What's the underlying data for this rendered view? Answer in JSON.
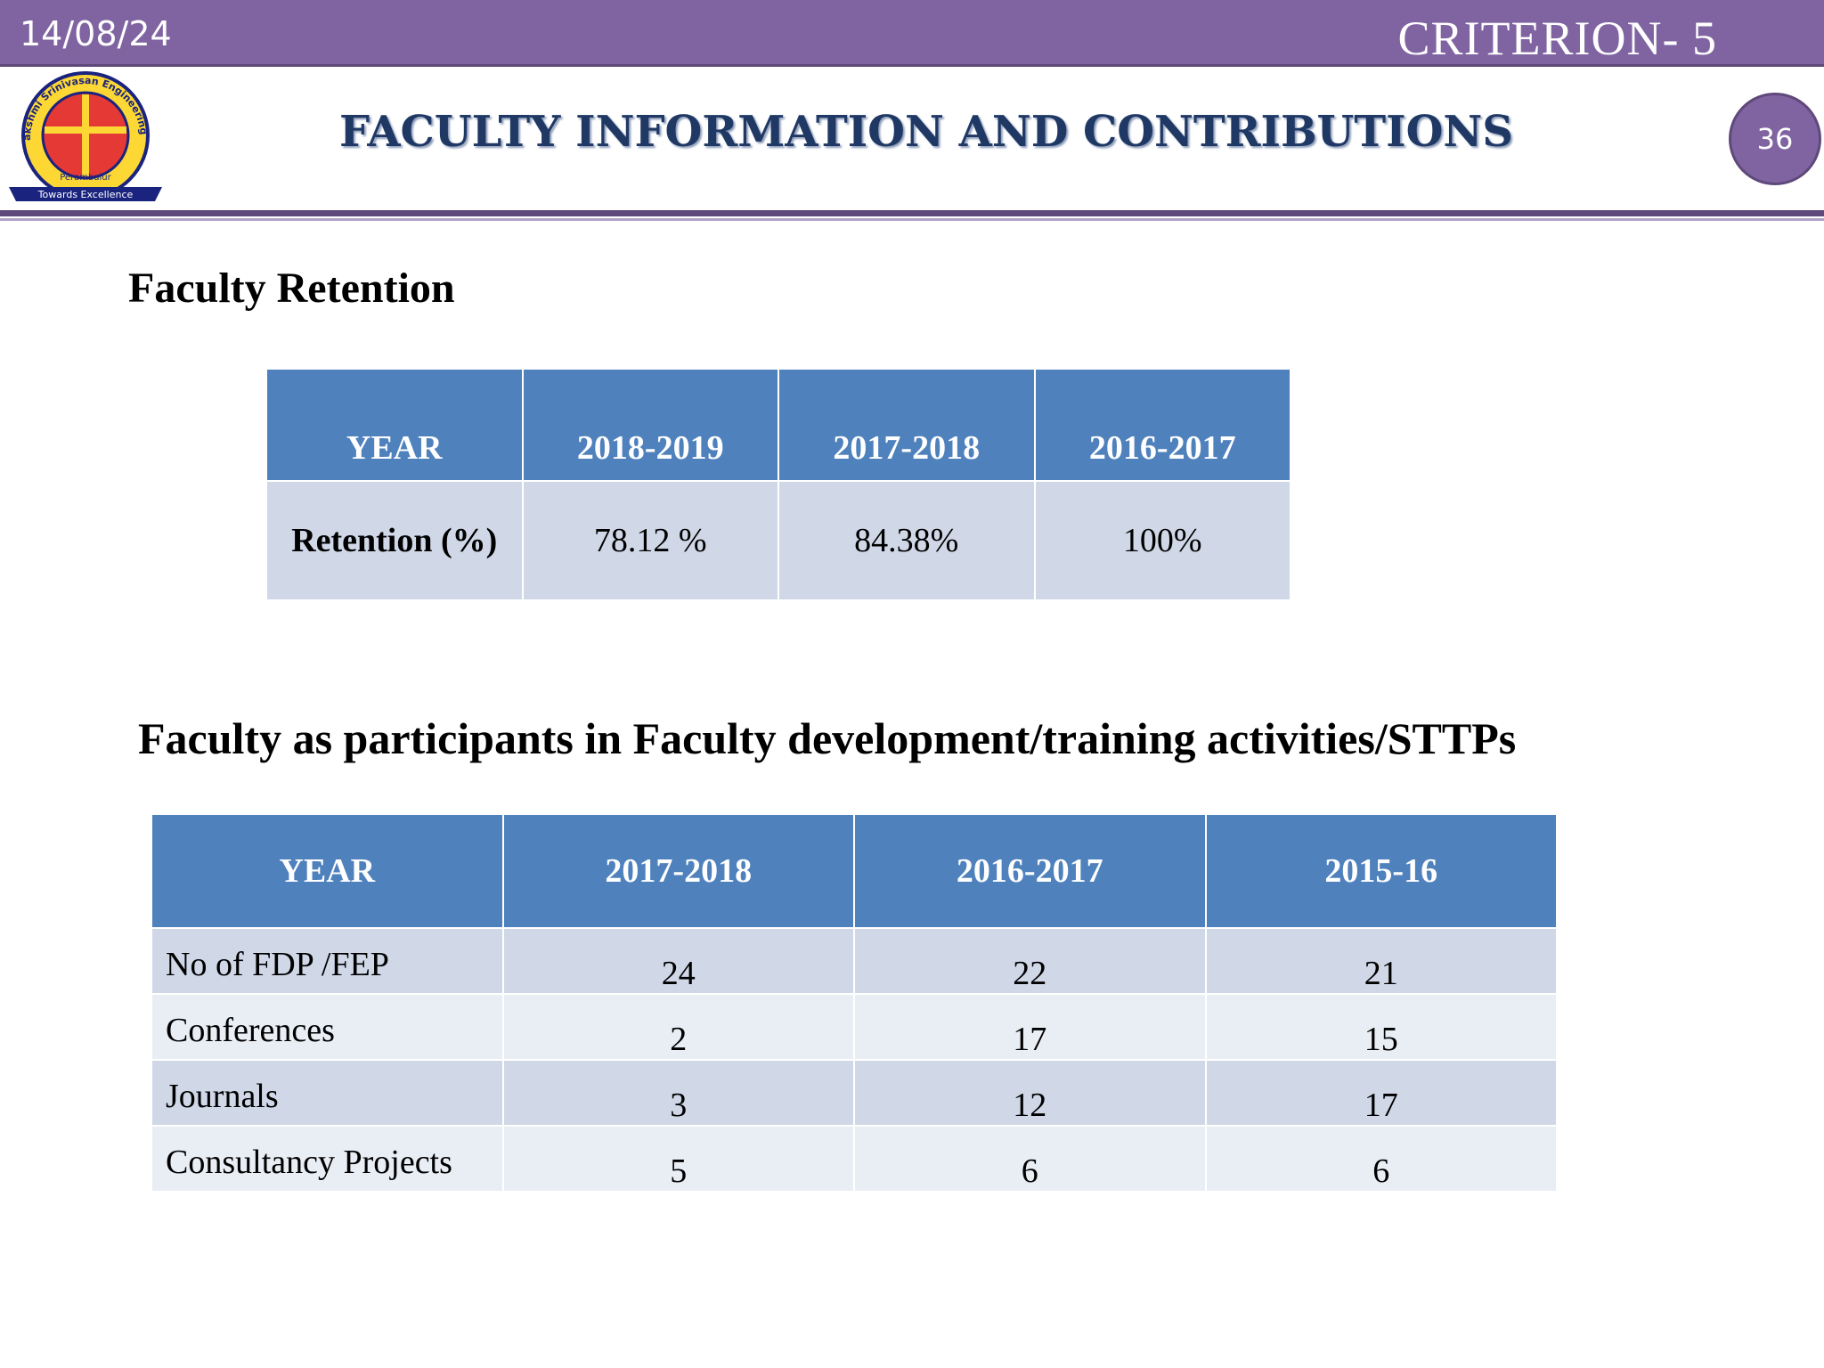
{
  "header": {
    "date": "14/08/24",
    "criterion": "CRITERION- 5",
    "title": "FACULTY INFORMATION AND CONTRIBUTIONS",
    "page_number": "36"
  },
  "logo": {
    "name": "Dhanalakshmi Srinivasan Engineering College",
    "place": "Perambalur",
    "motto": "Towards Excellence"
  },
  "retention": {
    "heading": "Faculty Retention",
    "table": {
      "header": [
        "YEAR",
        "2018-2019",
        "2017-2018",
        "2016-2017"
      ],
      "rows": [
        [
          "Retention (%)",
          "78.12 %",
          "84.38%",
          "100%"
        ]
      ]
    }
  },
  "participation": {
    "heading": "Faculty as participants in Faculty development/training activities/STTPs",
    "table": {
      "header": [
        "YEAR",
        "2017-2018",
        "2016-2017",
        "2015-16"
      ],
      "rows": [
        [
          "No of  FDP /FEP",
          "24",
          "22",
          "21"
        ],
        [
          "Conferences",
          "2",
          "17",
          "15"
        ],
        [
          "Journals",
          "3",
          "12",
          "17"
        ],
        [
          "Consultancy Projects",
          "5",
          "6",
          "6"
        ]
      ]
    }
  }
}
